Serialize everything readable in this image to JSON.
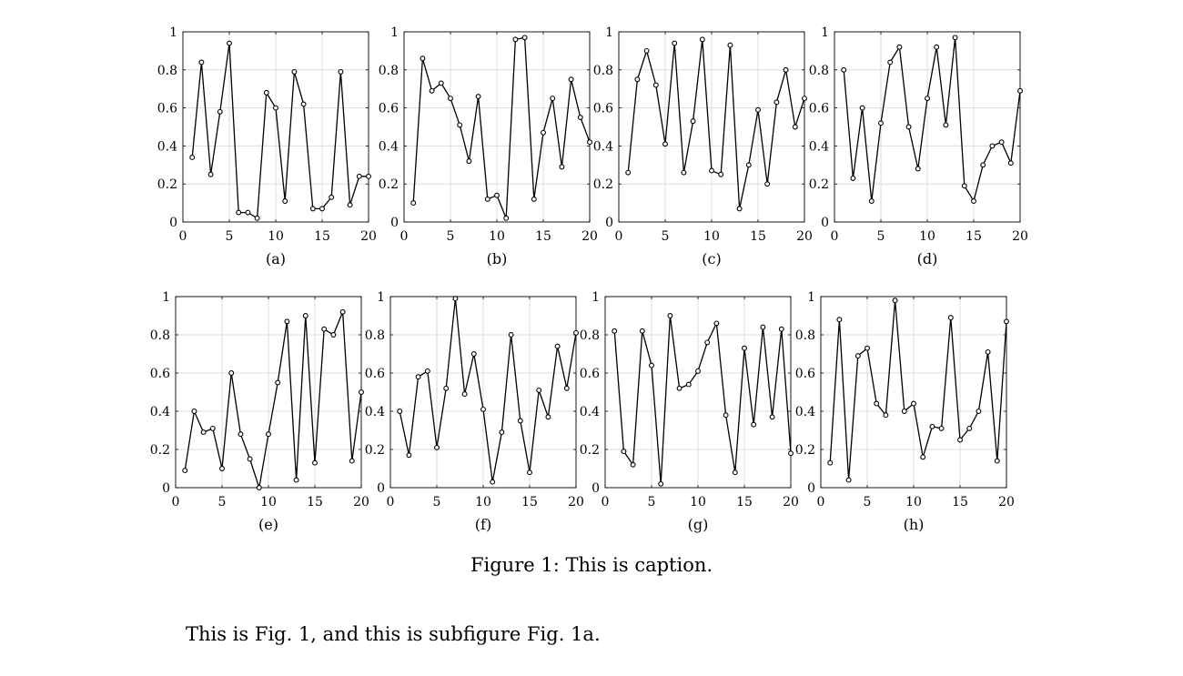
{
  "figure": {
    "caption": "Figure 1: This is caption.",
    "body_text": "This is Fig. 1, and this is subfigure Fig. 1a."
  },
  "chart_data": [
    {
      "type": "line",
      "label": "(a)",
      "xlim": [
        0,
        20
      ],
      "ylim": [
        0,
        1
      ],
      "x_ticks": [
        0,
        5,
        10,
        15,
        20
      ],
      "y_ticks": [
        0,
        0.2,
        0.4,
        0.6,
        0.8,
        1
      ],
      "grid": true,
      "marker": "circle",
      "x": [
        1,
        2,
        3,
        4,
        5,
        6,
        7,
        8,
        9,
        10,
        11,
        12,
        13,
        14,
        15,
        16,
        17,
        18,
        19,
        20
      ],
      "values": [
        0.34,
        0.84,
        0.25,
        0.58,
        0.94,
        0.05,
        0.05,
        0.02,
        0.68,
        0.6,
        0.11,
        0.79,
        0.62,
        0.07,
        0.07,
        0.13,
        0.79,
        0.09,
        0.24,
        0.24
      ]
    },
    {
      "type": "line",
      "label": "(b)",
      "xlim": [
        0,
        20
      ],
      "ylim": [
        0,
        1
      ],
      "x_ticks": [
        0,
        5,
        10,
        15,
        20
      ],
      "y_ticks": [
        0,
        0.2,
        0.4,
        0.6,
        0.8,
        1
      ],
      "grid": true,
      "marker": "circle",
      "x": [
        1,
        2,
        3,
        4,
        5,
        6,
        7,
        8,
        9,
        10,
        11,
        12,
        13,
        14,
        15,
        16,
        17,
        18,
        19,
        20
      ],
      "values": [
        0.1,
        0.86,
        0.69,
        0.73,
        0.65,
        0.51,
        0.32,
        0.66,
        0.12,
        0.14,
        0.02,
        0.96,
        0.97,
        0.12,
        0.47,
        0.65,
        0.29,
        0.75,
        0.55,
        0.42
      ]
    },
    {
      "type": "line",
      "label": "(c)",
      "xlim": [
        0,
        20
      ],
      "ylim": [
        0,
        1
      ],
      "x_ticks": [
        0,
        5,
        10,
        15,
        20
      ],
      "y_ticks": [
        0,
        0.2,
        0.4,
        0.6,
        0.8,
        1
      ],
      "grid": true,
      "marker": "circle",
      "x": [
        1,
        2,
        3,
        4,
        5,
        6,
        7,
        8,
        9,
        10,
        11,
        12,
        13,
        14,
        15,
        16,
        17,
        18,
        19,
        20
      ],
      "values": [
        0.26,
        0.75,
        0.9,
        0.72,
        0.41,
        0.94,
        0.26,
        0.53,
        0.96,
        0.27,
        0.25,
        0.93,
        0.07,
        0.3,
        0.59,
        0.2,
        0.63,
        0.8,
        0.5,
        0.65
      ]
    },
    {
      "type": "line",
      "label": "(d)",
      "xlim": [
        0,
        20
      ],
      "ylim": [
        0,
        1
      ],
      "x_ticks": [
        0,
        5,
        10,
        15,
        20
      ],
      "y_ticks": [
        0,
        0.2,
        0.4,
        0.6,
        0.8,
        1
      ],
      "grid": true,
      "marker": "circle",
      "x": [
        1,
        2,
        3,
        4,
        5,
        6,
        7,
        8,
        9,
        10,
        11,
        12,
        13,
        14,
        15,
        16,
        17,
        18,
        19,
        20
      ],
      "values": [
        0.8,
        0.23,
        0.6,
        0.11,
        0.52,
        0.84,
        0.92,
        0.5,
        0.28,
        0.65,
        0.92,
        0.51,
        0.97,
        0.19,
        0.11,
        0.3,
        0.4,
        0.42,
        0.31,
        0.69
      ]
    },
    {
      "type": "line",
      "label": "(e)",
      "xlim": [
        0,
        20
      ],
      "ylim": [
        0,
        1
      ],
      "x_ticks": [
        0,
        5,
        10,
        15,
        20
      ],
      "y_ticks": [
        0,
        0.2,
        0.4,
        0.6,
        0.8,
        1
      ],
      "grid": true,
      "marker": "circle",
      "x": [
        1,
        2,
        3,
        4,
        5,
        6,
        7,
        8,
        9,
        10,
        11,
        12,
        13,
        14,
        15,
        16,
        17,
        18,
        19,
        20
      ],
      "values": [
        0.09,
        0.4,
        0.29,
        0.31,
        0.1,
        0.6,
        0.28,
        0.15,
        0.0,
        0.28,
        0.55,
        0.87,
        0.04,
        0.9,
        0.13,
        0.83,
        0.8,
        0.92,
        0.14,
        0.5
      ]
    },
    {
      "type": "line",
      "label": "(f)",
      "xlim": [
        0,
        20
      ],
      "ylim": [
        0,
        1
      ],
      "x_ticks": [
        0,
        5,
        10,
        15,
        20
      ],
      "y_ticks": [
        0,
        0.2,
        0.4,
        0.6,
        0.8,
        1
      ],
      "grid": true,
      "marker": "circle",
      "x": [
        1,
        2,
        3,
        4,
        5,
        6,
        7,
        8,
        9,
        10,
        11,
        12,
        13,
        14,
        15,
        16,
        17,
        18,
        19,
        20
      ],
      "values": [
        0.4,
        0.17,
        0.58,
        0.61,
        0.21,
        0.52,
        0.99,
        0.49,
        0.7,
        0.41,
        0.03,
        0.29,
        0.8,
        0.35,
        0.08,
        0.51,
        0.37,
        0.74,
        0.52,
        0.81
      ]
    },
    {
      "type": "line",
      "label": "(g)",
      "xlim": [
        0,
        20
      ],
      "ylim": [
        0,
        1
      ],
      "x_ticks": [
        0,
        5,
        10,
        15,
        20
      ],
      "y_ticks": [
        0,
        0.2,
        0.4,
        0.6,
        0.8,
        1
      ],
      "grid": true,
      "marker": "circle",
      "x": [
        1,
        2,
        3,
        4,
        5,
        6,
        7,
        8,
        9,
        10,
        11,
        12,
        13,
        14,
        15,
        16,
        17,
        18,
        19,
        20
      ],
      "values": [
        0.82,
        0.19,
        0.12,
        0.82,
        0.64,
        0.02,
        0.9,
        0.52,
        0.54,
        0.61,
        0.76,
        0.86,
        0.38,
        0.08,
        0.73,
        0.33,
        0.84,
        0.37,
        0.83,
        0.18
      ]
    },
    {
      "type": "line",
      "label": "(h)",
      "xlim": [
        0,
        20
      ],
      "ylim": [
        0,
        1
      ],
      "x_ticks": [
        0,
        5,
        10,
        15,
        20
      ],
      "y_ticks": [
        0,
        0.2,
        0.4,
        0.6,
        0.8,
        1
      ],
      "grid": true,
      "marker": "circle",
      "x": [
        1,
        2,
        3,
        4,
        5,
        6,
        7,
        8,
        9,
        10,
        11,
        12,
        13,
        14,
        15,
        16,
        17,
        18,
        19,
        20
      ],
      "values": [
        0.13,
        0.88,
        0.04,
        0.69,
        0.73,
        0.44,
        0.38,
        0.98,
        0.4,
        0.44,
        0.16,
        0.32,
        0.31,
        0.89,
        0.25,
        0.31,
        0.4,
        0.71,
        0.14,
        0.87
      ]
    }
  ]
}
